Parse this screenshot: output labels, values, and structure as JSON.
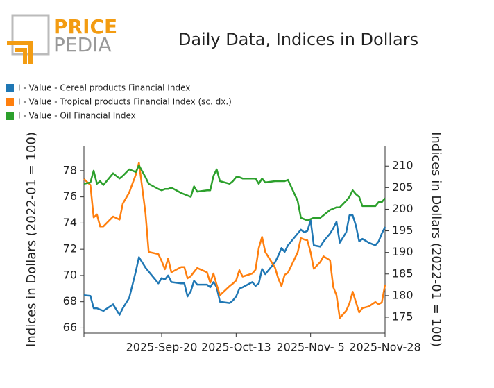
{
  "logo": {
    "top": "PRICE",
    "bottom": "PEDIA"
  },
  "chart_data": {
    "type": "line",
    "title": "Daily Data, Indices in Dollars",
    "ylabel": "Indices in Dollars (2022-01 = 100)",
    "y2label": "Indices in Dollars (2022-01 = 100)",
    "x": [
      "2025-08-27",
      "2025-08-29",
      "2025-08-30",
      "2025-08-31",
      "2025-09-01",
      "2025-09-02",
      "2025-09-05",
      "2025-09-07",
      "2025-09-08",
      "2025-09-10",
      "2025-09-12",
      "2025-09-13",
      "2025-09-15",
      "2025-09-16",
      "2025-09-19",
      "2025-09-20",
      "2025-09-21",
      "2025-09-22",
      "2025-09-23",
      "2025-09-26",
      "2025-09-27",
      "2025-09-28",
      "2025-09-29",
      "2025-09-30",
      "2025-10-01",
      "2025-10-04",
      "2025-10-05",
      "2025-10-06",
      "2025-10-07",
      "2025-10-08",
      "2025-10-11",
      "2025-10-12",
      "2025-10-13",
      "2025-10-14",
      "2025-10-15",
      "2025-10-18",
      "2025-10-19",
      "2025-10-20",
      "2025-10-21",
      "2025-10-22",
      "2025-10-25",
      "2025-10-26",
      "2025-10-27",
      "2025-10-28",
      "2025-10-29",
      "2025-11-01",
      "2025-11-02",
      "2025-11-03",
      "2025-11-04",
      "2025-11-05",
      "2025-11-06",
      "2025-11-08",
      "2025-11-09",
      "2025-11-11",
      "2025-11-12",
      "2025-11-13",
      "2025-11-14",
      "2025-11-16",
      "2025-11-17",
      "2025-11-18",
      "2025-11-19",
      "2025-11-20",
      "2025-11-21",
      "2025-11-23",
      "2025-11-25",
      "2025-11-26",
      "2025-11-27",
      "2025-11-28"
    ],
    "series": [
      {
        "name": "I - Value - Cereal products Financial Index",
        "color": "#1f77b4",
        "axis": "y",
        "values": [
          68.5,
          68.45,
          67.5,
          67.5,
          67.4,
          67.3,
          67.8,
          67.0,
          67.5,
          68.3,
          70.3,
          71.4,
          70.6,
          70.3,
          69.4,
          69.8,
          69.7,
          70.0,
          69.5,
          69.4,
          69.4,
          68.4,
          68.8,
          69.6,
          69.3,
          69.3,
          69.1,
          69.5,
          69.1,
          68.0,
          67.9,
          68.1,
          68.4,
          69.0,
          69.1,
          69.5,
          69.2,
          69.4,
          70.5,
          70.1,
          71.0,
          71.5,
          72.1,
          71.8,
          72.3,
          73.2,
          73.5,
          73.3,
          73.4,
          74.2,
          72.3,
          72.2,
          72.6,
          73.2,
          73.6,
          74.1,
          72.5,
          73.3,
          74.6,
          74.6,
          73.8,
          72.6,
          72.8,
          72.5,
          72.3,
          72.6,
          73.2,
          73.7
        ]
      },
      {
        "name": "I - Value - Tropical products Financial Index (sc. dx.)",
        "color": "#ff7f0e",
        "axis": "y2",
        "values": [
          207,
          205.6,
          198.1,
          198.8,
          196.0,
          196.0,
          198.3,
          197.6,
          201.3,
          203.9,
          208,
          210.8,
          199.1,
          190.1,
          189.6,
          188.0,
          186.1,
          188.6,
          185.4,
          186.6,
          186.6,
          184.0,
          184.5,
          185.5,
          186.4,
          185.4,
          183.0,
          185.1,
          182.5,
          180.1,
          182.2,
          182.8,
          183.5,
          185.9,
          184.4,
          185.1,
          186.0,
          191,
          193.6,
          190.1,
          186.5,
          184.0,
          182.2,
          184.8,
          185.3,
          190.0,
          193.3,
          193.0,
          192.8,
          190.0,
          186.2,
          187.8,
          189.1,
          188.2,
          182.0,
          180.1,
          174.8,
          176.5,
          178.2,
          180.9,
          178.5,
          176.1,
          177.1,
          177.5,
          178.5,
          178.0,
          178.4,
          182.5
        ]
      },
      {
        "name": "I - Value - Oil Financial Index",
        "color": "#2ca02c",
        "axis": "y",
        "values": [
          77.0,
          77.1,
          78.0,
          77.0,
          77.2,
          76.9,
          77.8,
          77.4,
          77.6,
          78.1,
          77.9,
          78.4,
          77.5,
          77.0,
          76.6,
          76.5,
          76.6,
          76.6,
          76.7,
          76.3,
          76.2,
          76.1,
          76.0,
          76.8,
          76.4,
          76.5,
          76.5,
          77.6,
          78.1,
          77.2,
          77.0,
          77.2,
          77.5,
          77.5,
          77.4,
          77.4,
          77.4,
          77.0,
          77.4,
          77.1,
          77.2,
          77.2,
          77.2,
          77.2,
          77.3,
          75.7,
          74.4,
          74.3,
          74.2,
          74.3,
          74.4,
          74.4,
          74.6,
          75.0,
          75.1,
          75.2,
          75.2,
          75.7,
          76.0,
          76.5,
          76.2,
          76.0,
          75.3,
          75.3,
          75.3,
          75.6,
          75.6,
          75.9
        ]
      }
    ],
    "xlim": [
      "2025-08-27",
      "2025-11-28"
    ],
    "xticks": [
      {
        "value": "2025-09-20",
        "label": "2025-Sep-20"
      },
      {
        "value": "2025-10-13",
        "label": "2025-Oct-13"
      },
      {
        "value": "2025-11-05",
        "label": "2025-Nov- 5"
      },
      {
        "value": "2025-11-28",
        "label": "2025-Nov-28"
      }
    ],
    "ylim": [
      65.6,
      79.9
    ],
    "yticks": [
      66,
      68,
      70,
      72,
      74,
      76,
      78
    ],
    "y2lim": [
      171.3,
      214.7
    ],
    "y2ticks": [
      175,
      180,
      185,
      190,
      195,
      200,
      205,
      210
    ],
    "grid": false
  }
}
